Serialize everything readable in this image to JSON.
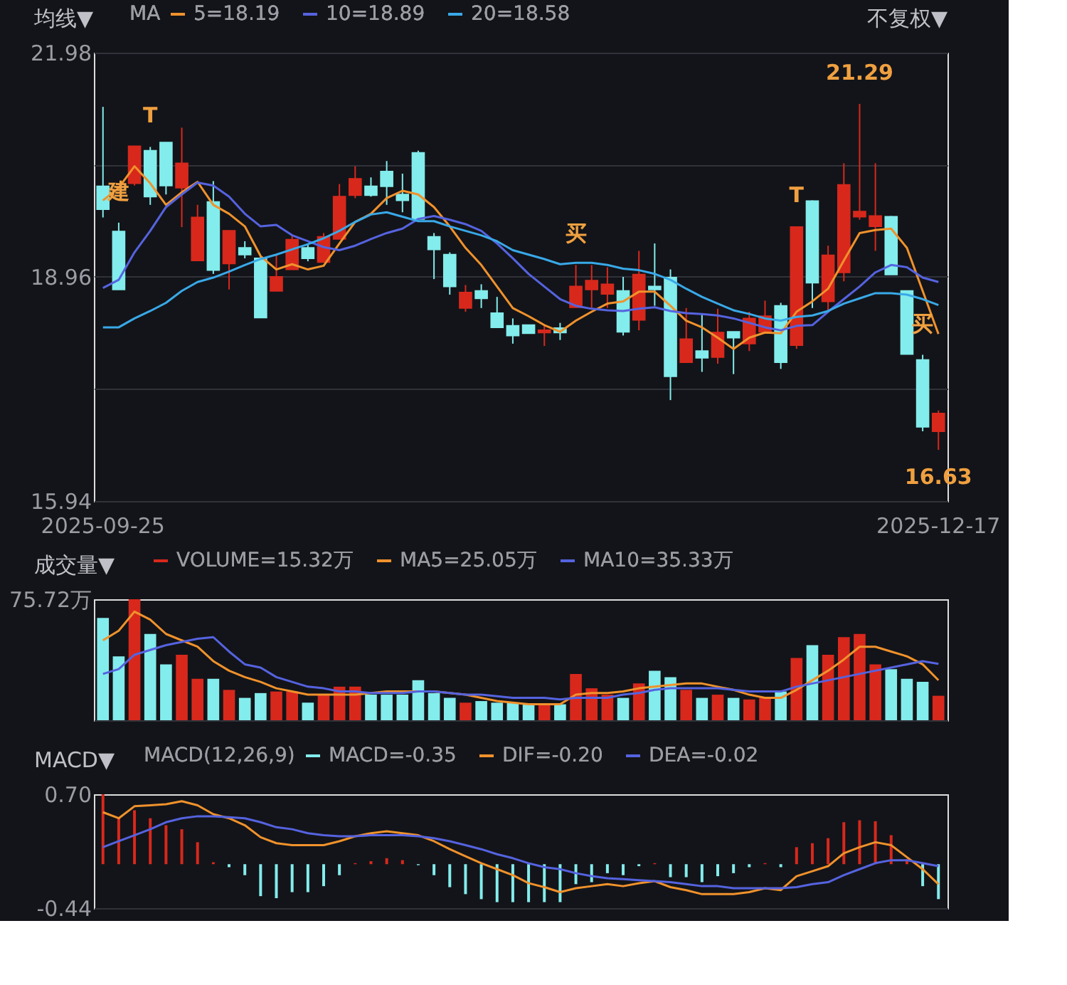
{
  "chart_data": [
    {
      "type": "candlestick",
      "categories": [
        "2025-09-25",
        null,
        null,
        null,
        null,
        null,
        null,
        null,
        null,
        null,
        null,
        null,
        null,
        null,
        null,
        null,
        null,
        null,
        null,
        null,
        null,
        null,
        null,
        null,
        null,
        null,
        null,
        null,
        null,
        null,
        null,
        null,
        null,
        null,
        null,
        null,
        null,
        null,
        null,
        null,
        null,
        null,
        null,
        null,
        null,
        null,
        null,
        null,
        null,
        null,
        null,
        null,
        null,
        "2025-12-17"
      ],
      "ohlc": [
        [
          20.18,
          21.25,
          19.76,
          19.87
        ],
        [
          19.57,
          19.69,
          18.79,
          18.79
        ],
        [
          20.22,
          20.72,
          20.19,
          20.72
        ],
        [
          20.66,
          20.71,
          19.93,
          20.04
        ],
        [
          20.77,
          20.77,
          20.07,
          20.19
        ],
        [
          20.16,
          20.97,
          19.63,
          20.49
        ],
        [
          19.18,
          19.93,
          19.18,
          19.76
        ],
        [
          19.97,
          20.25,
          19.0,
          19.05
        ],
        [
          19.14,
          19.58,
          18.79,
          19.58
        ],
        [
          19.35,
          19.44,
          19.21,
          19.26
        ],
        [
          19.21,
          19.24,
          18.41,
          18.41
        ],
        [
          18.77,
          19.26,
          18.77,
          18.96
        ],
        [
          19.06,
          19.51,
          19.06,
          19.46
        ],
        [
          19.35,
          19.41,
          19.17,
          19.21
        ],
        [
          19.16,
          19.55,
          19.16,
          19.5
        ],
        [
          19.47,
          20.21,
          19.47,
          20.04
        ],
        [
          20.06,
          20.45,
          20.02,
          20.28
        ],
        [
          20.18,
          20.3,
          20.04,
          20.06
        ],
        [
          20.38,
          20.52,
          19.93,
          20.18
        ],
        [
          20.07,
          20.35,
          19.83,
          19.99
        ],
        [
          20.63,
          20.66,
          19.74,
          19.74
        ],
        [
          19.5,
          19.55,
          18.93,
          19.33
        ],
        [
          19.26,
          19.29,
          18.72,
          18.83
        ],
        [
          18.54,
          18.85,
          18.49,
          18.75
        ],
        [
          18.77,
          18.86,
          18.54,
          18.67
        ],
        [
          18.47,
          18.69,
          18.28,
          18.28
        ],
        [
          18.3,
          18.4,
          18.06,
          18.17
        ],
        [
          18.31,
          18.31,
          18.2,
          18.2
        ],
        [
          18.21,
          18.3,
          18.03,
          18.24
        ],
        [
          18.27,
          18.34,
          18.11,
          18.21
        ],
        [
          18.55,
          19.12,
          18.55,
          18.83
        ],
        [
          18.79,
          19.12,
          18.54,
          18.91
        ],
        [
          18.73,
          19.09,
          18.54,
          18.86
        ],
        [
          18.77,
          18.96,
          18.17,
          18.22
        ],
        [
          18.38,
          19.31,
          18.24,
          18.99
        ],
        [
          18.83,
          19.41,
          18.57,
          18.79
        ],
        [
          18.95,
          19.06,
          17.3,
          17.62
        ],
        [
          17.81,
          18.54,
          17.81,
          18.12
        ],
        [
          17.96,
          18.46,
          17.68,
          17.87
        ],
        [
          17.88,
          18.53,
          17.79,
          18.21
        ],
        [
          18.22,
          18.22,
          17.65,
          18.14
        ],
        [
          18.06,
          18.49,
          17.96,
          18.4
        ],
        [
          18.22,
          18.64,
          18.2,
          18.43
        ],
        [
          18.57,
          18.61,
          17.72,
          17.81
        ],
        [
          18.04,
          19.64,
          17.99,
          19.63
        ],
        [
          19.98,
          19.99,
          18.54,
          18.88
        ],
        [
          18.63,
          19.38,
          18.5,
          19.25
        ],
        [
          19.02,
          20.49,
          18.9,
          20.2
        ],
        [
          19.77,
          21.29,
          19.73,
          19.84
        ],
        [
          19.64,
          20.49,
          19.31,
          19.78
        ],
        [
          19.77,
          19.78,
          18.99,
          18.99
        ],
        [
          18.77,
          18.77,
          17.92,
          17.92
        ],
        [
          17.84,
          17.91,
          16.88,
          16.94
        ],
        [
          16.88,
          17.16,
          16.63,
          17.12
        ]
      ],
      "colors": [
        "#83ecec",
        "#83ecec",
        "#d8281c",
        "#83ecec",
        "#83ecec",
        "#d8281c",
        "#d8281c",
        "#83ecec",
        "#d8281c",
        "#83ecec",
        "#83ecec",
        "#d8281c",
        "#d8281c",
        "#83ecec",
        "#d8281c",
        "#d8281c",
        "#d8281c",
        "#83ecec",
        "#83ecec",
        "#83ecec",
        "#83ecec",
        "#83ecec",
        "#83ecec",
        "#d8281c",
        "#83ecec",
        "#83ecec",
        "#83ecec",
        "#83ecec",
        "#d8281c",
        "#83ecec",
        "#d8281c",
        "#d8281c",
        "#d8281c",
        "#83ecec",
        "#d8281c",
        "#83ecec",
        "#83ecec",
        "#d8281c",
        "#83ecec",
        "#d8281c",
        "#83ecec",
        "#d8281c",
        "#d8281c",
        "#83ecec",
        "#d8281c",
        "#83ecec",
        "#d8281c",
        "#d8281c",
        "#d8281c",
        "#d8281c",
        "#83ecec",
        "#83ecec",
        "#83ecec",
        "#d8281c"
      ],
      "series": [
        {
          "name": "5=18.19",
          "type": "line",
          "color": "#f0922c",
          "values": [
            19.99,
            20.16,
            20.45,
            20.22,
            19.93,
            20.1,
            20.24,
            19.93,
            19.81,
            19.64,
            19.24,
            19.06,
            19.13,
            19.06,
            19.11,
            19.41,
            19.7,
            19.81,
            20.02,
            20.12,
            20.07,
            19.9,
            19.64,
            19.35,
            19.12,
            18.83,
            18.54,
            18.43,
            18.31,
            18.22,
            18.37,
            18.49,
            18.6,
            18.63,
            18.76,
            18.76,
            18.57,
            18.37,
            18.28,
            18.14,
            17.99,
            18.14,
            18.21,
            18.2,
            18.49,
            18.63,
            18.8,
            19.18,
            19.55,
            19.59,
            19.61,
            19.35,
            18.77,
            18.19
          ]
        },
        {
          "name": "10=18.89",
          "type": "line",
          "color": "#5563e0",
          "values": [
            18.81,
            18.92,
            19.29,
            19.58,
            19.9,
            20.07,
            20.23,
            20.19,
            20.04,
            19.81,
            19.64,
            19.66,
            19.52,
            19.44,
            19.36,
            19.32,
            19.38,
            19.47,
            19.55,
            19.61,
            19.74,
            19.78,
            19.73,
            19.67,
            19.58,
            19.41,
            19.21,
            19.0,
            18.83,
            18.66,
            18.57,
            18.53,
            18.51,
            18.5,
            18.53,
            18.55,
            18.5,
            18.47,
            18.46,
            18.44,
            18.4,
            18.34,
            18.28,
            18.24,
            18.3,
            18.31,
            18.49,
            18.66,
            18.83,
            19.02,
            19.12,
            19.09,
            18.95,
            18.89
          ]
        },
        {
          "name": "20=18.58",
          "type": "line",
          "color": "#39a9e8",
          "values": [
            18.28,
            18.28,
            18.4,
            18.5,
            18.61,
            18.77,
            18.89,
            18.95,
            19.03,
            19.12,
            19.2,
            19.26,
            19.33,
            19.4,
            19.48,
            19.58,
            19.7,
            19.8,
            19.83,
            19.77,
            19.71,
            19.71,
            19.64,
            19.58,
            19.52,
            19.44,
            19.32,
            19.26,
            19.2,
            19.13,
            19.15,
            19.15,
            19.12,
            19.07,
            19.05,
            19.0,
            18.92,
            18.8,
            18.69,
            18.6,
            18.51,
            18.46,
            18.4,
            18.37,
            18.42,
            18.44,
            18.5,
            18.6,
            18.67,
            18.74,
            18.74,
            18.72,
            18.66,
            18.58
          ]
        }
      ],
      "ylim": [
        15.94,
        21.98
      ],
      "yticks": [
        21.98,
        {
          "value": 20.47,
          "label": null
        },
        18.96,
        {
          "value": 17.45,
          "label": null
        },
        15.94
      ],
      "grid": "y",
      "legend": "top left",
      "legend_title": "MA",
      "annotations": [
        "均线▼",
        "不复权▼",
        {
          "text": "建",
          "y": 19.69
        },
        {
          "text": "T",
          "y": 20.71
        },
        {
          "text": "买",
          "y": 19.12
        },
        {
          "text": "T",
          "y": 19.64
        },
        {
          "text": "买",
          "y": 17.91
        },
        {
          "text": "21.29",
          "y": 21.29
        },
        {
          "text": "16.63",
          "y": 16.63
        }
      ]
    },
    {
      "type": "bar",
      "categories": [
        null,
        null,
        null,
        null,
        null,
        null,
        null,
        null,
        null,
        null,
        null,
        null,
        null,
        null,
        null,
        null,
        null,
        null,
        null,
        null,
        null,
        null,
        null,
        null,
        null,
        null,
        null,
        null,
        null,
        null,
        null,
        null,
        null,
        null,
        null,
        null,
        null,
        null,
        null,
        null,
        null,
        null,
        null,
        null,
        null,
        null,
        null,
        null,
        null,
        null,
        null,
        null,
        null,
        null
      ],
      "series": [
        {
          "name": "VOLUME=15.32万",
          "colors": [
            "#83ecec",
            "#83ecec",
            "#d8281c",
            "#83ecec",
            "#83ecec",
            "#d8281c",
            "#d8281c",
            "#83ecec",
            "#d8281c",
            "#83ecec",
            "#83ecec",
            "#d8281c",
            "#d8281c",
            "#83ecec",
            "#d8281c",
            "#d8281c",
            "#d8281c",
            "#83ecec",
            "#83ecec",
            "#83ecec",
            "#83ecec",
            "#83ecec",
            "#83ecec",
            "#d8281c",
            "#83ecec",
            "#83ecec",
            "#83ecec",
            "#83ecec",
            "#d8281c",
            "#83ecec",
            "#d8281c",
            "#d8281c",
            "#d8281c",
            "#83ecec",
            "#d8281c",
            "#83ecec",
            "#83ecec",
            "#d8281c",
            "#83ecec",
            "#d8281c",
            "#83ecec",
            "#d8281c",
            "#d8281c",
            "#83ecec",
            "#d8281c",
            "#83ecec",
            "#d8281c",
            "#d8281c",
            "#d8281c",
            "#d8281c",
            "#83ecec",
            "#83ecec",
            "#83ecec",
            "#d8281c"
          ],
          "values": [
            64,
            40,
            75.72,
            54,
            35,
            41,
            26,
            26,
            19,
            14,
            17,
            18,
            18,
            11,
            16,
            21,
            21,
            16,
            16,
            16,
            25,
            17,
            14,
            11,
            12,
            11,
            11,
            10,
            10,
            10,
            29,
            20,
            16,
            14,
            23,
            31,
            27,
            19,
            14,
            16,
            14,
            13,
            14,
            18,
            39,
            47,
            41,
            52,
            54,
            35,
            32,
            26,
            24,
            15.32
          ]
        },
        {
          "name": "MA5=25.05万",
          "type": "line",
          "color": "#f0922c",
          "values": [
            50,
            56,
            68,
            63,
            54,
            50,
            46,
            37,
            31,
            27,
            24,
            20,
            18,
            16,
            16,
            16,
            16,
            17,
            18,
            18,
            18,
            18,
            17,
            16,
            14,
            12,
            11,
            10,
            10,
            10,
            16,
            17,
            17,
            18,
            20,
            21,
            22,
            23,
            23,
            21,
            19,
            16,
            14,
            14,
            19,
            25,
            31,
            38,
            46,
            46,
            43,
            40,
            35,
            25.05
          ]
        },
        {
          "name": "MA10=35.33万",
          "type": "line",
          "color": "#5563e0",
          "values": [
            29,
            32,
            41,
            44,
            47,
            49,
            51,
            52,
            43,
            35,
            33,
            27,
            24,
            21,
            20,
            18,
            18,
            17,
            17,
            17,
            18,
            18,
            17,
            16,
            16,
            15,
            14,
            14,
            14,
            13,
            14,
            14,
            14,
            16,
            17,
            19,
            20,
            20,
            20,
            20,
            19,
            18,
            18,
            18,
            21,
            23,
            25,
            27,
            29,
            31,
            33,
            35,
            37,
            35.33
          ]
        }
      ],
      "ylim": [
        0,
        75.72
      ],
      "yticks": [
        {
          "value": 0,
          "label": null
        },
        {
          "value": 75.72,
          "label": "75.72万"
        }
      ],
      "tick_labels": "y",
      "legend": "top left",
      "annotations": [
        "成交量▼"
      ]
    },
    {
      "type": "bar",
      "categories": [
        null,
        null,
        null,
        null,
        null,
        null,
        null,
        null,
        null,
        null,
        null,
        null,
        null,
        null,
        null,
        null,
        null,
        null,
        null,
        null,
        null,
        null,
        null,
        null,
        null,
        null,
        null,
        null,
        null,
        null,
        null,
        null,
        null,
        null,
        null,
        null,
        null,
        null,
        null,
        null,
        null,
        null,
        null,
        null,
        null,
        null,
        null,
        null,
        null,
        null,
        null,
        null,
        null,
        null
      ],
      "series": [
        {
          "name": "MACD=-0.35",
          "colors": [
            "#d8281c",
            "#d8281c",
            "#d8281c",
            "#d8281c",
            "#d8281c",
            "#d8281c",
            "#d8281c",
            "#d8281c",
            "#83ecec",
            "#83ecec",
            "#83ecec",
            "#83ecec",
            "#83ecec",
            "#83ecec",
            "#83ecec",
            "#83ecec",
            "#d8281c",
            "#d8281c",
            "#d8281c",
            "#d8281c",
            "#83ecec",
            "#83ecec",
            "#83ecec",
            "#83ecec",
            "#83ecec",
            "#83ecec",
            "#83ecec",
            "#83ecec",
            "#83ecec",
            "#83ecec",
            "#83ecec",
            "#83ecec",
            "#83ecec",
            "#83ecec",
            "#83ecec",
            "#d8281c",
            "#83ecec",
            "#83ecec",
            "#83ecec",
            "#83ecec",
            "#83ecec",
            "#83ecec",
            "#d8281c",
            "#83ecec",
            "#d8281c",
            "#d8281c",
            "#d8281c",
            "#d8281c",
            "#d8281c",
            "#d8281c",
            "#d8281c",
            "#d8281c",
            "#83ecec",
            "#83ecec"
          ],
          "values": [
            0.7,
            0.46,
            0.54,
            0.46,
            0.39,
            0.35,
            0.22,
            0.02,
            -0.03,
            -0.11,
            -0.32,
            -0.34,
            -0.28,
            -0.28,
            -0.22,
            -0.11,
            0.01,
            0.03,
            0.06,
            0.04,
            -0.01,
            -0.11,
            -0.23,
            -0.3,
            -0.35,
            -0.38,
            -0.38,
            -0.38,
            -0.38,
            -0.38,
            -0.2,
            -0.18,
            -0.09,
            -0.11,
            -0.02,
            0.01,
            -0.13,
            -0.13,
            -0.18,
            -0.12,
            -0.09,
            -0.03,
            0.01,
            -0.03,
            0.17,
            0.21,
            0.26,
            0.42,
            0.44,
            0.43,
            0.29,
            0.05,
            -0.22,
            -0.35
          ]
        },
        {
          "name": "DIF=-0.20",
          "type": "line",
          "color": "#f0922c",
          "values": [
            0.52,
            0.46,
            0.58,
            0.59,
            0.6,
            0.63,
            0.59,
            0.5,
            0.46,
            0.39,
            0.27,
            0.21,
            0.19,
            0.19,
            0.19,
            0.23,
            0.28,
            0.31,
            0.33,
            0.31,
            0.29,
            0.23,
            0.15,
            0.08,
            0.01,
            -0.05,
            -0.11,
            -0.19,
            -0.23,
            -0.28,
            -0.24,
            -0.22,
            -0.2,
            -0.22,
            -0.19,
            -0.17,
            -0.23,
            -0.26,
            -0.3,
            -0.3,
            -0.3,
            -0.28,
            -0.24,
            -0.26,
            -0.12,
            -0.07,
            -0.02,
            0.11,
            0.17,
            0.22,
            0.19,
            0.07,
            -0.05,
            -0.2
          ]
        },
        {
          "name": "DEA=-0.02",
          "type": "line",
          "color": "#5563e0",
          "values": [
            0.17,
            0.23,
            0.29,
            0.35,
            0.42,
            0.46,
            0.48,
            0.48,
            0.47,
            0.46,
            0.42,
            0.37,
            0.35,
            0.31,
            0.29,
            0.28,
            0.28,
            0.29,
            0.29,
            0.29,
            0.28,
            0.26,
            0.23,
            0.19,
            0.15,
            0.1,
            0.06,
            0.01,
            -0.03,
            -0.05,
            -0.09,
            -0.12,
            -0.14,
            -0.15,
            -0.16,
            -0.17,
            -0.18,
            -0.2,
            -0.22,
            -0.22,
            -0.24,
            -0.24,
            -0.24,
            -0.24,
            -0.23,
            -0.2,
            -0.18,
            -0.11,
            -0.05,
            0.01,
            0.04,
            0.04,
            0.01,
            -0.02
          ]
        }
      ],
      "ylim": [
        -0.44,
        0.7
      ],
      "yticks": [
        {
          "value": 0.7,
          "label": "0.70"
        },
        -0.44
      ],
      "tick_labels": "y",
      "legend": "top left",
      "legend_title": "MACD(12,26,9)",
      "annotations": [
        "MACD▼"
      ]
    }
  ]
}
